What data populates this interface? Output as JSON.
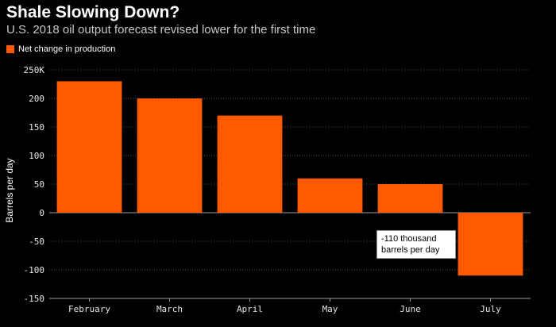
{
  "title": "Shale Slowing Down?",
  "subtitle": "U.S. 2018 oil output forecast revised lower for the first time",
  "legend": {
    "label": "Net change in production",
    "color": "#ff5a00"
  },
  "annotation": {
    "text": "-110 thousand barrels per day"
  },
  "chart_data": {
    "type": "bar",
    "categories": [
      "February",
      "March",
      "April",
      "May",
      "June",
      "July"
    ],
    "series": [
      {
        "name": "Net change in production",
        "values": [
          230,
          200,
          170,
          60,
          50,
          -110
        ],
        "color": "#ff5a00"
      }
    ],
    "ylabel": "Barrels per day",
    "ylim": [
      -150,
      250
    ],
    "yticks": [
      250,
      200,
      150,
      100,
      50,
      0,
      -50,
      -100,
      -150
    ],
    "ytick_labels": [
      "250K",
      "200",
      "150",
      "100",
      "50",
      "0",
      "-50",
      "-100",
      "-150"
    ],
    "grid": true,
    "legend_position": "top-left"
  }
}
